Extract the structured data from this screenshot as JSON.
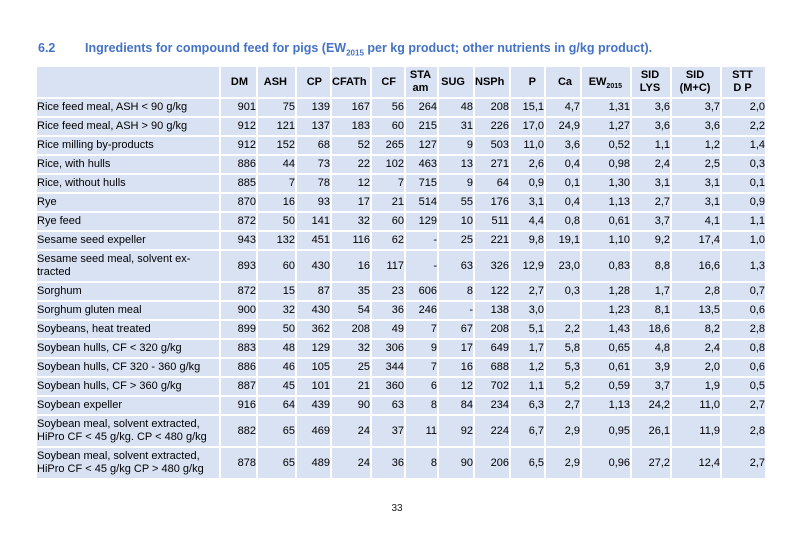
{
  "colors": {
    "title_blue": "#4472c4",
    "cell_bg": "#d9e2f3",
    "grid_white": "#ffffff",
    "text": "#000000",
    "page_bg": "#ffffff"
  },
  "heading": {
    "number": "6.2",
    "title_pre": "Ingredients for compound feed for pigs (EW",
    "title_sub": "2015",
    "title_post": " per kg product; other nutrients in g/kg product)."
  },
  "footer": {
    "page_number": "33"
  },
  "table": {
    "columns": [
      {
        "id": "ingredient",
        "label": ""
      },
      {
        "id": "dm",
        "label": "DM"
      },
      {
        "id": "ash",
        "label": "ASH"
      },
      {
        "id": "cp",
        "label": "CP"
      },
      {
        "id": "cfath",
        "label": "CFATh"
      },
      {
        "id": "cf",
        "label": "CF"
      },
      {
        "id": "sta-am",
        "lines": [
          "STA",
          "am"
        ]
      },
      {
        "id": "sug",
        "label": "SUG"
      },
      {
        "id": "nsph",
        "label": "NSPh"
      },
      {
        "id": "p",
        "label": "P"
      },
      {
        "id": "ca",
        "label": "Ca"
      },
      {
        "id": "ew2015",
        "base": "EW",
        "sub": "2015"
      },
      {
        "id": "sid-lys",
        "lines": [
          "SID",
          "LYS"
        ]
      },
      {
        "id": "sid-mc",
        "lines": [
          "SID",
          "(M+C)"
        ]
      },
      {
        "id": "stt-dp",
        "lines": [
          "STT",
          "D P"
        ]
      }
    ],
    "rows": [
      {
        "label": "Rice feed meal, ASH < 90 g/kg",
        "values": [
          "901",
          "75",
          "139",
          "167",
          "56",
          "264",
          "48",
          "208",
          "15,1",
          "4,7",
          "1,31",
          "3,6",
          "3,7",
          "2,0"
        ]
      },
      {
        "label": "Rice feed meal, ASH > 90 g/kg",
        "values": [
          "912",
          "121",
          "137",
          "183",
          "60",
          "215",
          "31",
          "226",
          "17,0",
          "24,9",
          "1,27",
          "3,6",
          "3,6",
          "2,2"
        ]
      },
      {
        "label": "Rice milling by-products",
        "values": [
          "912",
          "152",
          "68",
          "52",
          "265",
          "127",
          "9",
          "503",
          "11,0",
          "3,6",
          "0,52",
          "1,1",
          "1,2",
          "1,4"
        ]
      },
      {
        "label": "Rice, with hulls",
        "values": [
          "886",
          "44",
          "73",
          "22",
          "102",
          "463",
          "13",
          "271",
          "2,6",
          "0,4",
          "0,98",
          "2,4",
          "2,5",
          "0,3"
        ]
      },
      {
        "label": "Rice, without hulls",
        "values": [
          "885",
          "7",
          "78",
          "12",
          "7",
          "715",
          "9",
          "64",
          "0,9",
          "0,1",
          "1,30",
          "3,1",
          "3,1",
          "0,1"
        ]
      },
      {
        "label": "Rye",
        "values": [
          "870",
          "16",
          "93",
          "17",
          "21",
          "514",
          "55",
          "176",
          "3,1",
          "0,4",
          "1,13",
          "2,7",
          "3,1",
          "0,9"
        ]
      },
      {
        "label": "Rye feed",
        "values": [
          "872",
          "50",
          "141",
          "32",
          "60",
          "129",
          "10",
          "511",
          "4,4",
          "0,8",
          "0,61",
          "3,7",
          "4,1",
          "1,1"
        ]
      },
      {
        "label": "Sesame seed expeller",
        "values": [
          "943",
          "132",
          "451",
          "116",
          "62",
          "-",
          "25",
          "221",
          "9,8",
          "19,1",
          "1,10",
          "9,2",
          "17,4",
          "1,0"
        ]
      },
      {
        "label": "Sesame seed meal, solvent ex-tracted",
        "values": [
          "893",
          "60",
          "430",
          "16",
          "117",
          "-",
          "63",
          "326",
          "12,9",
          "23,0",
          "0,83",
          "8,8",
          "16,6",
          "1,3"
        ]
      },
      {
        "label": "Sorghum",
        "values": [
          "872",
          "15",
          "87",
          "35",
          "23",
          "606",
          "8",
          "122",
          "2,7",
          "0,3",
          "1,28",
          "1,7",
          "2,8",
          "0,7"
        ]
      },
      {
        "label": "Sorghum gluten meal",
        "values": [
          "900",
          "32",
          "430",
          "54",
          "36",
          "246",
          "-",
          "138",
          "3,0",
          "",
          "1,23",
          "8,1",
          "13,5",
          "0,6"
        ]
      },
      {
        "label": "Soybeans, heat treated",
        "values": [
          "899",
          "50",
          "362",
          "208",
          "49",
          "7",
          "67",
          "208",
          "5,1",
          "2,2",
          "1,43",
          "18,6",
          "8,2",
          "2,8"
        ]
      },
      {
        "label": "Soybean hulls, CF < 320 g/kg",
        "values": [
          "883",
          "48",
          "129",
          "32",
          "306",
          "9",
          "17",
          "649",
          "1,7",
          "5,8",
          "0,65",
          "4,8",
          "2,4",
          "0,8"
        ]
      },
      {
        "label": "Soybean hulls, CF 320 - 360 g/kg",
        "values": [
          "886",
          "46",
          "105",
          "25",
          "344",
          "7",
          "16",
          "688",
          "1,2",
          "5,3",
          "0,61",
          "3,9",
          "2,0",
          "0,6"
        ]
      },
      {
        "label": "Soybean hulls, CF > 360 g/kg",
        "values": [
          "887",
          "45",
          "101",
          "21",
          "360",
          "6",
          "12",
          "702",
          "1,1",
          "5,2",
          "0,59",
          "3,7",
          "1,9",
          "0,5"
        ]
      },
      {
        "label": "Soybean expeller",
        "values": [
          "916",
          "64",
          "439",
          "90",
          "63",
          "8",
          "84",
          "234",
          "6,3",
          "2,7",
          "1,13",
          "24,2",
          "11,0",
          "2,7"
        ]
      },
      {
        "label": "Soybean meal, solvent extracted, HiPro CF < 45 g/kg. CP < 480 g/kg",
        "values": [
          "882",
          "65",
          "469",
          "24",
          "37",
          "11",
          "92",
          "224",
          "6,7",
          "2,9",
          "0,95",
          "26,1",
          "11,9",
          "2,8"
        ]
      },
      {
        "label": "Soybean meal, solvent extracted, HiPro CF < 45 g/kg CP > 480 g/kg",
        "values": [
          "878",
          "65",
          "489",
          "24",
          "36",
          "8",
          "90",
          "206",
          "6,5",
          "2,9",
          "0,96",
          "27,2",
          "12,4",
          "2,7"
        ]
      }
    ]
  }
}
